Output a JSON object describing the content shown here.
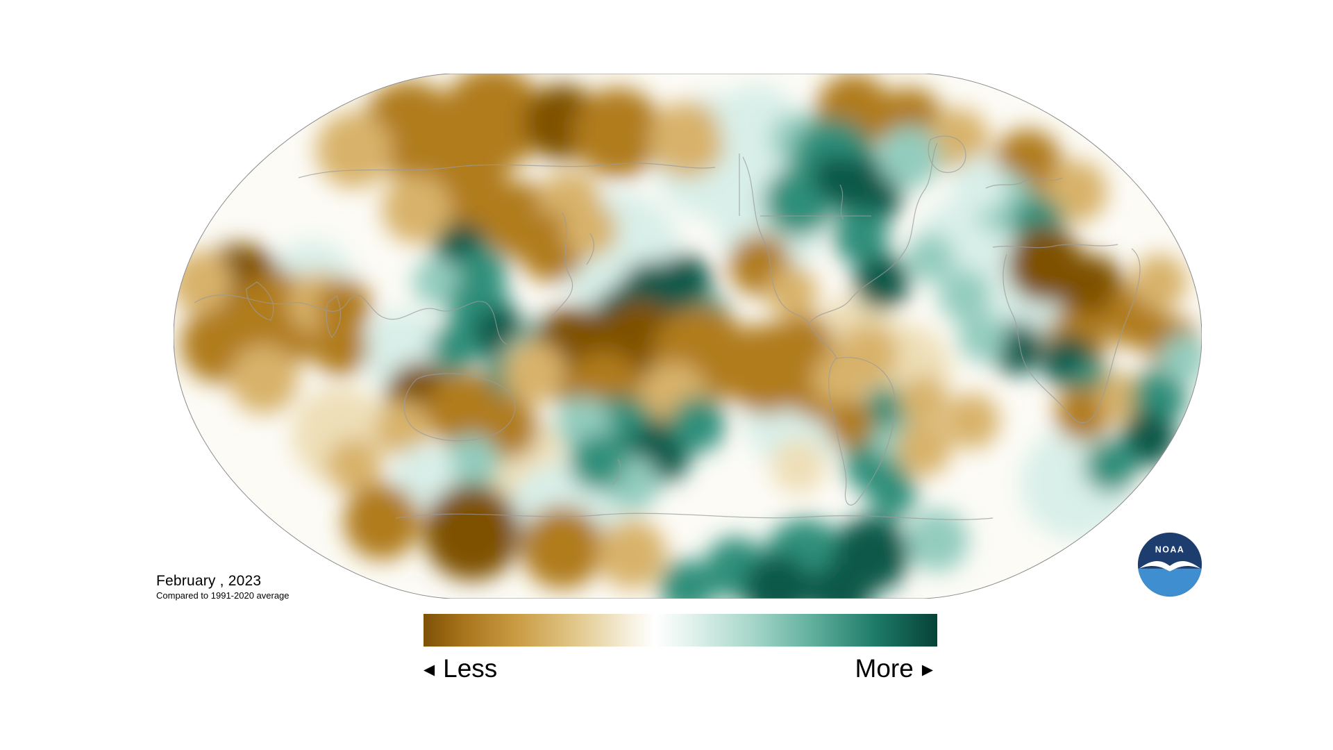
{
  "meta": {
    "title": "February , 2023",
    "subtitle": "Compared to 1991-2020 average"
  },
  "legend": {
    "less": "Less",
    "more": "More",
    "left_arrow": "◀",
    "right_arrow": "▶",
    "gradient_stops": [
      "#7e5106 0%",
      "#a9751c 8%",
      "#c99b43 18%",
      "#e2c98d 30%",
      "#f6efdd 40%",
      "#ffffff 45%",
      "#e2f2ed 52%",
      "#a6d6c9 64%",
      "#5fae9c 76%",
      "#1d7a67 88%",
      "#064237 100%"
    ]
  },
  "logo": {
    "text": "NOAA",
    "navy": "#1d3d6e",
    "lightblue": "#3e8ed0"
  },
  "map": {
    "base_fill": "#fcfbf6",
    "outline_stroke": "#8c8c8c",
    "coast_stroke": "#9b9b9b",
    "palette": {
      "b0": "#eedfb8",
      "b1": "#d8b26a",
      "b2": "#b07c1d",
      "b3": "#7e5106",
      "t0": "#d9efe9",
      "t1": "#93ccbd",
      "t2": "#2e8f7a",
      "t3": "#07584a"
    },
    "blobs": [
      [
        "t0",
        780,
        120,
        90
      ],
      [
        "t0",
        640,
        260,
        90
      ],
      [
        "t0",
        860,
        210,
        80
      ],
      [
        "t0",
        1140,
        250,
        70
      ],
      [
        "t0",
        330,
        400,
        60
      ],
      [
        "t0",
        900,
        490,
        80
      ],
      [
        "t0",
        1240,
        340,
        60
      ],
      [
        "b0",
        480,
        560,
        80
      ],
      [
        "b0",
        1050,
        430,
        70
      ],
      [
        "b0",
        240,
        520,
        70
      ],
      [
        "b0",
        980,
        380,
        60
      ],
      [
        "t0",
        560,
        640,
        80
      ],
      [
        "t0",
        1300,
        590,
        80
      ],
      [
        "t0",
        200,
        300,
        60
      ],
      [
        "b2",
        340,
        80,
        70
      ],
      [
        "b2",
        460,
        65,
        75
      ],
      [
        "b3",
        560,
        70,
        55
      ],
      [
        "b2",
        640,
        85,
        65
      ],
      [
        "b1",
        740,
        95,
        55
      ],
      [
        "b1",
        260,
        110,
        55
      ],
      [
        "b2",
        980,
        55,
        55
      ],
      [
        "b2",
        1060,
        70,
        50
      ],
      [
        "b1",
        1130,
        95,
        45
      ],
      [
        "b2",
        1230,
        130,
        50
      ],
      [
        "b1",
        1300,
        170,
        45
      ],
      [
        "t0",
        840,
        70,
        55
      ],
      [
        "t1",
        900,
        95,
        40
      ],
      [
        "t2",
        950,
        125,
        60
      ],
      [
        "t3",
        1000,
        170,
        50
      ],
      [
        "t2",
        900,
        185,
        50
      ],
      [
        "t1",
        1060,
        120,
        45
      ],
      [
        "t2",
        990,
        235,
        40
      ],
      [
        "t3",
        955,
        150,
        35
      ],
      [
        "b2",
        420,
        170,
        65
      ],
      [
        "b1",
        350,
        195,
        50
      ],
      [
        "b2",
        500,
        210,
        55
      ],
      [
        "b1",
        570,
        185,
        45
      ],
      [
        "b2",
        545,
        250,
        50
      ],
      [
        "b1",
        600,
        225,
        40
      ],
      [
        "t3",
        415,
        255,
        40
      ],
      [
        "t2",
        445,
        285,
        35
      ],
      [
        "t1",
        380,
        300,
        35
      ],
      [
        "t1",
        1195,
        185,
        45
      ],
      [
        "t2",
        1245,
        215,
        38
      ],
      [
        "t0",
        1160,
        160,
        40
      ],
      [
        "b3",
        95,
        310,
        65
      ],
      [
        "b2",
        150,
        355,
        70
      ],
      [
        "b2",
        65,
        390,
        55
      ],
      [
        "b1",
        210,
        330,
        45
      ],
      [
        "b1",
        130,
        440,
        50
      ],
      [
        "b2",
        240,
        395,
        40
      ],
      [
        "b1",
        40,
        300,
        45
      ],
      [
        "b2",
        245,
        335,
        40
      ],
      [
        "t2",
        440,
        335,
        45
      ],
      [
        "t3",
        470,
        375,
        40
      ],
      [
        "t2",
        405,
        395,
        35
      ],
      [
        "t1",
        500,
        415,
        32
      ],
      [
        "t2",
        480,
        440,
        35
      ],
      [
        "t1",
        530,
        380,
        30
      ],
      [
        "t3",
        690,
        320,
        50
      ],
      [
        "t3",
        735,
        300,
        40
      ],
      [
        "t3",
        645,
        345,
        38
      ],
      [
        "t2",
        770,
        350,
        32
      ],
      [
        "b3",
        580,
        405,
        70
      ],
      [
        "b3",
        670,
        390,
        65
      ],
      [
        "b2",
        760,
        405,
        70
      ],
      [
        "b2",
        855,
        425,
        65
      ],
      [
        "b2",
        935,
        445,
        55
      ],
      [
        "b2",
        620,
        455,
        55
      ],
      [
        "b1",
        720,
        465,
        50
      ],
      [
        "b1",
        520,
        430,
        45
      ],
      [
        "b1",
        1000,
        405,
        45
      ],
      [
        "b2",
        905,
        390,
        45
      ],
      [
        "t2",
        645,
        520,
        55
      ],
      [
        "t3",
        700,
        545,
        45
      ],
      [
        "t2",
        755,
        505,
        40
      ],
      [
        "t1",
        590,
        505,
        40
      ],
      [
        "t1",
        660,
        590,
        40
      ],
      [
        "t2",
        610,
        560,
        40
      ],
      [
        "b3",
        355,
        465,
        50
      ],
      [
        "b2",
        420,
        485,
        55
      ],
      [
        "b2",
        480,
        510,
        45
      ],
      [
        "b1",
        330,
        510,
        40
      ],
      [
        "t1",
        430,
        560,
        40
      ],
      [
        "t0",
        360,
        580,
        45
      ],
      [
        "t2",
        1010,
        560,
        45
      ],
      [
        "t1",
        1040,
        520,
        38
      ],
      [
        "t2",
        1035,
        605,
        35
      ],
      [
        "t2",
        1025,
        480,
        30
      ],
      [
        "b1",
        960,
        440,
        40
      ],
      [
        "b2",
        975,
        505,
        35
      ],
      [
        "b1",
        1080,
        540,
        40
      ],
      [
        "t3",
        1020,
        300,
        40
      ],
      [
        "t1",
        1090,
        265,
        35
      ],
      [
        "b2",
        845,
        275,
        45
      ],
      [
        "b1",
        890,
        315,
        38
      ],
      [
        "t1",
        1140,
        320,
        38
      ],
      [
        "b3",
        1255,
        275,
        55
      ],
      [
        "b3",
        1320,
        310,
        50
      ],
      [
        "b2",
        1385,
        350,
        45
      ],
      [
        "b2",
        1300,
        385,
        45
      ],
      [
        "b1",
        1420,
        300,
        40
      ],
      [
        "b2",
        1440,
        390,
        40
      ],
      [
        "t3",
        1290,
        415,
        38
      ],
      [
        "t2",
        1320,
        445,
        32
      ],
      [
        "b2",
        1310,
        490,
        40
      ],
      [
        "b1",
        1365,
        465,
        35
      ],
      [
        "t3",
        1215,
        395,
        38
      ],
      [
        "t1",
        1165,
        380,
        35
      ],
      [
        "t2",
        1420,
        465,
        40
      ],
      [
        "t1",
        1455,
        410,
        35
      ],
      [
        "t3",
        1405,
        525,
        40
      ],
      [
        "t2",
        1350,
        565,
        38
      ],
      [
        "b1",
        1150,
        500,
        40
      ],
      [
        "b1",
        1080,
        470,
        35
      ],
      [
        "b0",
        900,
        565,
        40
      ],
      [
        "b1",
        260,
        565,
        40
      ],
      [
        "b3",
        430,
        660,
        70
      ],
      [
        "b2",
        560,
        682,
        60
      ],
      [
        "b2",
        300,
        645,
        55
      ],
      [
        "b1",
        660,
        692,
        50
      ],
      [
        "t2",
        910,
        700,
        60
      ],
      [
        "t3",
        1005,
        692,
        55
      ],
      [
        "t2",
        810,
        712,
        45
      ],
      [
        "t1",
        1100,
        672,
        45
      ],
      [
        "t3",
        870,
        742,
        50
      ],
      [
        "t3",
        960,
        748,
        45
      ],
      [
        "t2",
        740,
        740,
        40
      ]
    ]
  }
}
